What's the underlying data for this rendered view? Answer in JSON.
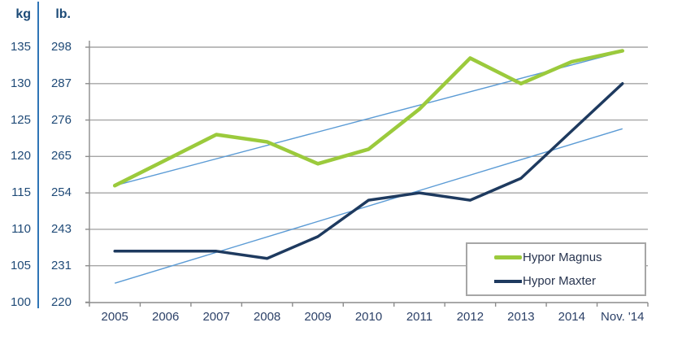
{
  "axes": {
    "kg_header": "kg",
    "lb_header": "lb.",
    "kg_ticks": [
      "135",
      "130",
      "125",
      "120",
      "115",
      "110",
      "105",
      "100"
    ],
    "lb_ticks": [
      "298",
      "287",
      "276",
      "265",
      "254",
      "243",
      "231",
      "220"
    ],
    "x_ticks": [
      "2005",
      "2006",
      "2007",
      "2008",
      "2009",
      "2010",
      "2011",
      "2012",
      "2013",
      "2014",
      "Nov. '14"
    ]
  },
  "legend": {
    "items": [
      {
        "label": "Hypor Magnus",
        "color": "#9bca3c"
      },
      {
        "label": "Hypor Maxter",
        "color": "#1e3a5f"
      }
    ]
  },
  "colors": {
    "gridline": "#a6a6a6",
    "axis_line": "#8c8c8c",
    "trendline": "#5b9bd5",
    "label_blue": "#1f4a77",
    "separator_blue": "#2e74b5",
    "magnus_green": "#9bca3c",
    "maxter_navy": "#1e3a5f"
  },
  "chart_data": {
    "type": "line",
    "title": "",
    "categories": [
      "2005",
      "2006",
      "2007",
      "2008",
      "2009",
      "2010",
      "2011",
      "2012",
      "2013",
      "2014",
      "Nov. '14"
    ],
    "ylabel_left": "kg",
    "ylabel_right": "lb.",
    "ylim_kg": [
      100,
      135
    ],
    "yticks_kg": [
      135,
      130,
      125,
      120,
      115,
      110,
      105,
      100
    ],
    "yticks_lb": [
      298,
      287,
      276,
      265,
      254,
      243,
      231,
      220
    ],
    "grid": true,
    "legend_position": "inside-bottom-right",
    "series": [
      {
        "name": "Hypor Magnus",
        "color": "#9bca3c",
        "values_kg": [
          116,
          119.5,
          123,
          122,
          119,
          121,
          126.5,
          133.5,
          130,
          133,
          134.5
        ],
        "values_lb": [
          256,
          263,
          271,
          269,
          262,
          267,
          279,
          294,
          287,
          293,
          297
        ]
      },
      {
        "name": "Hypor Maxter",
        "color": "#1e3a5f",
        "values_kg": [
          107,
          107,
          107,
          106,
          109,
          114,
          115,
          114,
          117,
          123.5,
          130
        ],
        "values_lb": [
          236,
          236,
          236,
          234,
          240,
          251,
          254,
          251,
          258,
          272,
          287
        ]
      }
    ],
    "trendlines": [
      {
        "for": "Hypor Magnus",
        "start_kg": 116,
        "end_kg": 134.4,
        "color": "#5b9bd5"
      },
      {
        "for": "Hypor Maxter",
        "start_kg": 102.6,
        "end_kg": 123.8,
        "color": "#5b9bd5"
      }
    ]
  }
}
